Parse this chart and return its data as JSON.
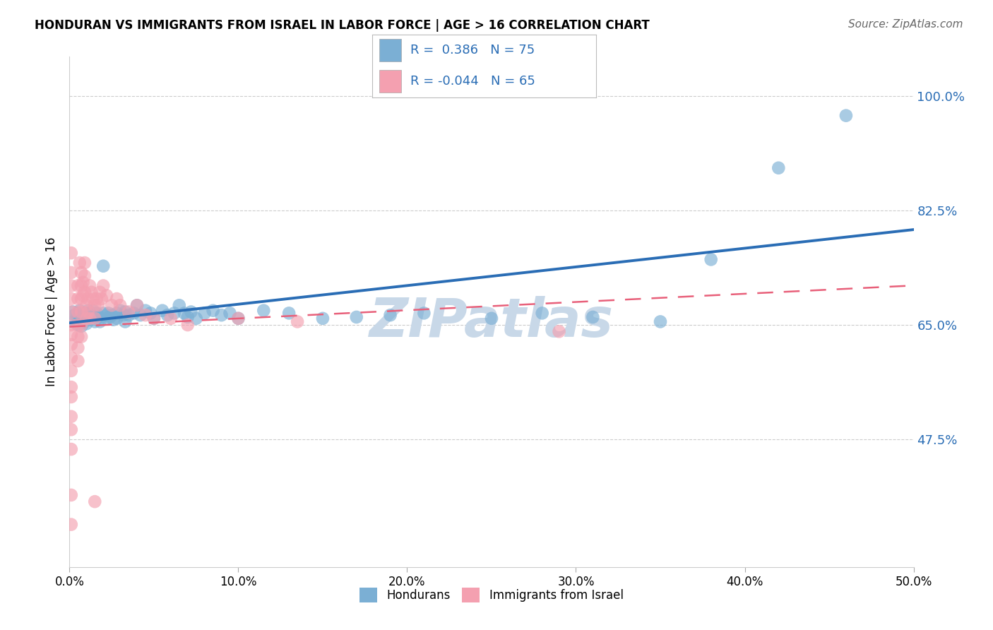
{
  "title": "HONDURAN VS IMMIGRANTS FROM ISRAEL IN LABOR FORCE | AGE > 16 CORRELATION CHART",
  "source": "Source: ZipAtlas.com",
  "ylabel": "In Labor Force | Age > 16",
  "xlim": [
    0.0,
    0.5
  ],
  "ylim": [
    0.28,
    1.06
  ],
  "yticks": [
    0.475,
    0.65,
    0.825,
    1.0
  ],
  "ytick_labels": [
    "47.5%",
    "65.0%",
    "82.5%",
    "100.0%"
  ],
  "xticks": [
    0.0,
    0.1,
    0.2,
    0.3,
    0.4,
    0.5
  ],
  "xtick_labels": [
    "0.0%",
    "10.0%",
    "20.0%",
    "30.0%",
    "40.0%",
    "50.0%"
  ],
  "hondurans_R": "0.386",
  "hondurans_N": "75",
  "israel_R": "-0.044",
  "israel_N": "65",
  "blue_color": "#7BAFD4",
  "pink_color": "#F4A0B0",
  "line_blue": "#2A6DB5",
  "line_pink": "#E8607A",
  "watermark": "ZIPatlas",
  "watermark_color": "#C8D8E8",
  "background_color": "#FFFFFF",
  "grid_color": "#CCCCCC",
  "hondurans_scatter": [
    [
      0.002,
      0.67
    ],
    [
      0.002,
      0.655
    ],
    [
      0.003,
      0.665
    ],
    [
      0.005,
      0.66
    ],
    [
      0.005,
      0.65
    ],
    [
      0.005,
      0.668
    ],
    [
      0.006,
      0.672
    ],
    [
      0.007,
      0.648
    ],
    [
      0.007,
      0.66
    ],
    [
      0.008,
      0.665
    ],
    [
      0.008,
      0.658
    ],
    [
      0.009,
      0.655
    ],
    [
      0.01,
      0.668
    ],
    [
      0.01,
      0.66
    ],
    [
      0.01,
      0.652
    ],
    [
      0.011,
      0.672
    ],
    [
      0.011,
      0.665
    ],
    [
      0.012,
      0.668
    ],
    [
      0.012,
      0.66
    ],
    [
      0.013,
      0.665
    ],
    [
      0.013,
      0.658
    ],
    [
      0.014,
      0.672
    ],
    [
      0.015,
      0.66
    ],
    [
      0.015,
      0.655
    ],
    [
      0.016,
      0.668
    ],
    [
      0.017,
      0.662
    ],
    [
      0.018,
      0.66
    ],
    [
      0.018,
      0.655
    ],
    [
      0.02,
      0.74
    ],
    [
      0.02,
      0.668
    ],
    [
      0.022,
      0.665
    ],
    [
      0.022,
      0.66
    ],
    [
      0.023,
      0.668
    ],
    [
      0.024,
      0.662
    ],
    [
      0.025,
      0.665
    ],
    [
      0.026,
      0.658
    ],
    [
      0.028,
      0.668
    ],
    [
      0.028,
      0.66
    ],
    [
      0.03,
      0.672
    ],
    [
      0.032,
      0.665
    ],
    [
      0.033,
      0.67
    ],
    [
      0.033,
      0.655
    ],
    [
      0.035,
      0.665
    ],
    [
      0.038,
      0.668
    ],
    [
      0.04,
      0.68
    ],
    [
      0.042,
      0.665
    ],
    [
      0.045,
      0.672
    ],
    [
      0.048,
      0.668
    ],
    [
      0.05,
      0.66
    ],
    [
      0.055,
      0.672
    ],
    [
      0.058,
      0.665
    ],
    [
      0.062,
      0.668
    ],
    [
      0.065,
      0.68
    ],
    [
      0.068,
      0.668
    ],
    [
      0.07,
      0.662
    ],
    [
      0.072,
      0.67
    ],
    [
      0.075,
      0.66
    ],
    [
      0.08,
      0.668
    ],
    [
      0.085,
      0.672
    ],
    [
      0.09,
      0.665
    ],
    [
      0.095,
      0.668
    ],
    [
      0.1,
      0.66
    ],
    [
      0.115,
      0.672
    ],
    [
      0.13,
      0.668
    ],
    [
      0.15,
      0.66
    ],
    [
      0.17,
      0.662
    ],
    [
      0.19,
      0.665
    ],
    [
      0.21,
      0.668
    ],
    [
      0.25,
      0.66
    ],
    [
      0.28,
      0.668
    ],
    [
      0.31,
      0.662
    ],
    [
      0.35,
      0.655
    ],
    [
      0.38,
      0.75
    ],
    [
      0.42,
      0.89
    ],
    [
      0.46,
      0.97
    ]
  ],
  "israel_scatter": [
    [
      0.001,
      0.76
    ],
    [
      0.001,
      0.73
    ],
    [
      0.001,
      0.71
    ],
    [
      0.001,
      0.69
    ],
    [
      0.001,
      0.67
    ],
    [
      0.001,
      0.65
    ],
    [
      0.001,
      0.635
    ],
    [
      0.001,
      0.62
    ],
    [
      0.001,
      0.6
    ],
    [
      0.001,
      0.58
    ],
    [
      0.001,
      0.555
    ],
    [
      0.001,
      0.54
    ],
    [
      0.001,
      0.51
    ],
    [
      0.001,
      0.49
    ],
    [
      0.001,
      0.46
    ],
    [
      0.001,
      0.39
    ],
    [
      0.001,
      0.345
    ],
    [
      0.005,
      0.71
    ],
    [
      0.005,
      0.69
    ],
    [
      0.005,
      0.67
    ],
    [
      0.005,
      0.65
    ],
    [
      0.005,
      0.632
    ],
    [
      0.005,
      0.615
    ],
    [
      0.005,
      0.595
    ],
    [
      0.006,
      0.745
    ],
    [
      0.007,
      0.73
    ],
    [
      0.007,
      0.71
    ],
    [
      0.007,
      0.69
    ],
    [
      0.007,
      0.67
    ],
    [
      0.007,
      0.65
    ],
    [
      0.007,
      0.632
    ],
    [
      0.008,
      0.715
    ],
    [
      0.008,
      0.695
    ],
    [
      0.009,
      0.745
    ],
    [
      0.009,
      0.725
    ],
    [
      0.009,
      0.7
    ],
    [
      0.01,
      0.68
    ],
    [
      0.01,
      0.66
    ],
    [
      0.011,
      0.69
    ],
    [
      0.011,
      0.67
    ],
    [
      0.012,
      0.66
    ],
    [
      0.012,
      0.71
    ],
    [
      0.013,
      0.7
    ],
    [
      0.014,
      0.69
    ],
    [
      0.015,
      0.68
    ],
    [
      0.015,
      0.66
    ],
    [
      0.016,
      0.69
    ],
    [
      0.017,
      0.68
    ],
    [
      0.018,
      0.7
    ],
    [
      0.019,
      0.69
    ],
    [
      0.02,
      0.71
    ],
    [
      0.022,
      0.695
    ],
    [
      0.025,
      0.68
    ],
    [
      0.028,
      0.69
    ],
    [
      0.03,
      0.68
    ],
    [
      0.035,
      0.67
    ],
    [
      0.04,
      0.68
    ],
    [
      0.045,
      0.665
    ],
    [
      0.05,
      0.66
    ],
    [
      0.06,
      0.66
    ],
    [
      0.07,
      0.65
    ],
    [
      0.1,
      0.66
    ],
    [
      0.135,
      0.655
    ],
    [
      0.29,
      0.64
    ],
    [
      0.015,
      0.38
    ]
  ]
}
